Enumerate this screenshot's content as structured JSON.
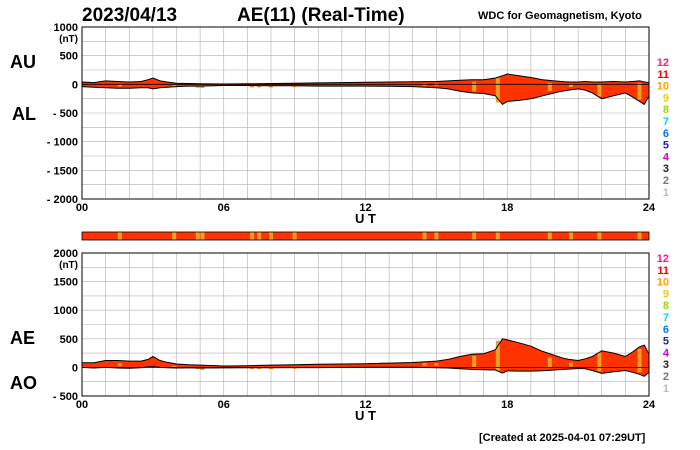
{
  "header": {
    "date": "2023/04/13",
    "title": "AE(11) (Real-Time)",
    "source": "WDC for Geomagnetism, Kyoto"
  },
  "footer": {
    "created": "[Created at 2025-04-01 07:29UT]"
  },
  "colors": {
    "fill": "#ff3300",
    "orange": "#f0a020",
    "outline": "#000000",
    "grid": "#b0b0b0"
  },
  "legend": {
    "items": [
      {
        "label": "12",
        "color": "#ff1a8c"
      },
      {
        "label": "11",
        "color": "#ff0000"
      },
      {
        "label": "10",
        "color": "#ffa500"
      },
      {
        "label": "9",
        "color": "#e6d000"
      },
      {
        "label": "8",
        "color": "#99dd00"
      },
      {
        "label": "7",
        "color": "#00dddd"
      },
      {
        "label": "6",
        "color": "#0077ff"
      },
      {
        "label": "5",
        "color": "#2222aa"
      },
      {
        "label": "4",
        "color": "#cc00cc"
      },
      {
        "label": "3",
        "color": "#222222"
      },
      {
        "label": "2",
        "color": "#777777"
      },
      {
        "label": "1",
        "color": "#bbbbbb"
      }
    ]
  },
  "chart_data": [
    {
      "type": "area",
      "name": "AU/AL",
      "labels": {
        "upper": "AU",
        "lower": "AL"
      },
      "xlabel": "U T",
      "ylabel_unit": "(nT)",
      "xlim": [
        0,
        24
      ],
      "ylim": [
        -2000,
        1000
      ],
      "x_ticks": [
        0,
        6,
        12,
        18,
        24
      ],
      "x_tick_labels": [
        "00",
        "06",
        "12",
        "18",
        "24"
      ],
      "y_ticks": [
        1000,
        500,
        0,
        -500,
        -1000,
        -1500,
        -2000
      ],
      "y_tick_labels": [
        "1000",
        "500",
        "0",
        "- 500",
        "- 1000",
        "- 1500",
        "- 2000"
      ],
      "x": [
        0,
        0.5,
        1,
        1.5,
        2,
        2.5,
        2.8,
        3,
        3.3,
        3.6,
        4,
        4.5,
        5,
        6,
        7,
        8,
        9,
        10,
        11,
        12,
        13,
        14,
        15,
        15.5,
        16,
        16.5,
        17,
        17.5,
        17.8,
        18,
        18.5,
        19,
        19.5,
        20,
        20.3,
        20.6,
        21,
        21.3,
        21.6,
        22,
        22.5,
        23,
        23.3,
        23.6,
        23.8,
        24
      ],
      "series": [
        {
          "key": "upper",
          "values": [
            40,
            30,
            60,
            50,
            40,
            50,
            80,
            110,
            60,
            40,
            20,
            15,
            10,
            5,
            10,
            15,
            20,
            25,
            30,
            35,
            40,
            45,
            50,
            60,
            70,
            80,
            80,
            110,
            150,
            180,
            150,
            120,
            80,
            60,
            50,
            40,
            40,
            50,
            40,
            40,
            50,
            40,
            50,
            60,
            40,
            30
          ]
        },
        {
          "key": "lower",
          "values": [
            -40,
            -50,
            -60,
            -70,
            -70,
            -60,
            -60,
            -80,
            -60,
            -50,
            -40,
            -30,
            -30,
            -20,
            -20,
            -25,
            -25,
            -30,
            -30,
            -30,
            -35,
            -40,
            -60,
            -80,
            -120,
            -150,
            -160,
            -200,
            -350,
            -300,
            -280,
            -250,
            -200,
            -150,
            -120,
            -100,
            -80,
            -100,
            -150,
            -250,
            -200,
            -150,
            -220,
            -300,
            -350,
            -200
          ]
        }
      ]
    },
    {
      "type": "area",
      "name": "AE/AO",
      "labels": {
        "upper": "AE",
        "lower": "AO"
      },
      "xlabel": "U T",
      "ylabel_unit": "(nT)",
      "xlim": [
        0,
        24
      ],
      "ylim": [
        -500,
        2000
      ],
      "x_ticks": [
        0,
        6,
        12,
        18,
        24
      ],
      "x_tick_labels": [
        "00",
        "06",
        "12",
        "18",
        "24"
      ],
      "y_ticks": [
        2000,
        1500,
        1000,
        500,
        0,
        -500
      ],
      "y_tick_labels": [
        "2000",
        "1500",
        "1000",
        "500",
        "0",
        "- 500"
      ],
      "x": [
        0,
        0.5,
        1,
        1.5,
        2,
        2.5,
        2.8,
        3,
        3.3,
        3.6,
        4,
        4.5,
        5,
        6,
        7,
        8,
        9,
        10,
        11,
        12,
        13,
        14,
        15,
        15.5,
        16,
        16.5,
        17,
        17.5,
        17.8,
        18,
        18.5,
        19,
        19.5,
        20,
        20.3,
        20.6,
        21,
        21.3,
        21.6,
        22,
        22.5,
        23,
        23.3,
        23.6,
        23.8,
        24
      ],
      "series": [
        {
          "key": "upper",
          "values": [
            80,
            80,
            120,
            120,
            110,
            110,
            140,
            190,
            120,
            90,
            60,
            45,
            40,
            25,
            30,
            40,
            45,
            55,
            60,
            65,
            75,
            85,
            110,
            140,
            190,
            230,
            240,
            310,
            500,
            480,
            430,
            370,
            280,
            210,
            170,
            140,
            120,
            150,
            190,
            290,
            250,
            190,
            270,
            360,
            390,
            230
          ]
        },
        {
          "key": "lower",
          "values": [
            0,
            -10,
            0,
            -10,
            -15,
            -5,
            10,
            15,
            0,
            -5,
            -10,
            -8,
            -10,
            -8,
            -5,
            -5,
            -3,
            -3,
            0,
            3,
            3,
            3,
            -5,
            -10,
            -25,
            -35,
            -40,
            -45,
            -100,
            -60,
            -65,
            -65,
            -60,
            -45,
            -35,
            -30,
            -20,
            -25,
            -55,
            -105,
            -75,
            -55,
            -85,
            -120,
            -155,
            -85
          ]
        }
      ]
    }
  ],
  "activity_bar": {
    "orange_marks_ut": [
      1.6,
      3.9,
      4.9,
      5.1,
      7.2,
      7.5,
      8.0,
      9.0,
      14.5,
      15.0,
      16.6,
      17.6,
      19.8,
      20.7,
      21.9,
      23.6
    ]
  }
}
